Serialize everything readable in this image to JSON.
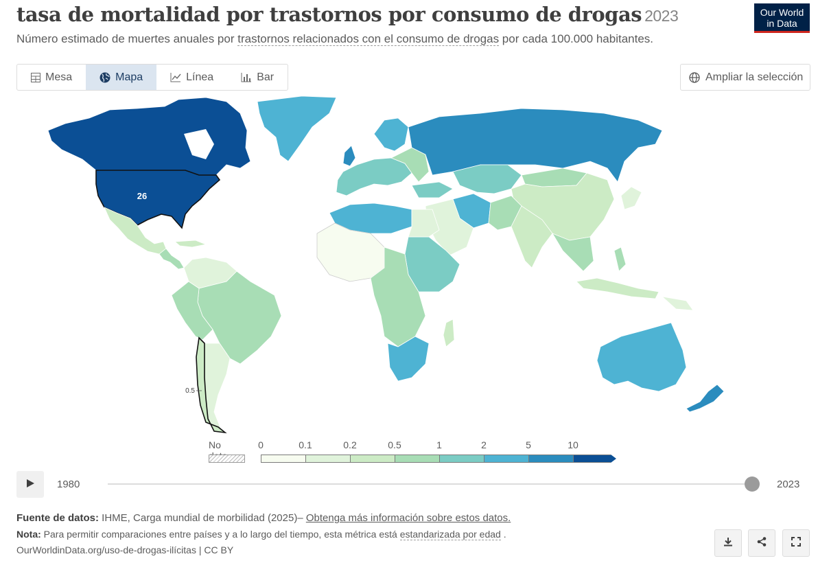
{
  "header": {
    "title": "tasa de mortalidad por trastornos por consumo de drogas",
    "year": "2023",
    "subtitle_pre": "Número estimado de muertes anuales por ",
    "subtitle_link": "trastornos relacionados con el consumo de drogas",
    "subtitle_post": " por cada 100.000 habitantes.",
    "logo_line1": "Our World",
    "logo_line2": "in Data"
  },
  "tabs": [
    {
      "label": "Mesa",
      "icon": "table-icon",
      "active": false
    },
    {
      "label": "Mapa",
      "icon": "globe-icon",
      "active": true
    },
    {
      "label": "Línea",
      "icon": "line-chart-icon",
      "active": false
    },
    {
      "label": "Bar",
      "icon": "bar-chart-icon",
      "active": false
    }
  ],
  "expand_button": {
    "label": "Ampliar la selección",
    "icon": "globe-outline-icon"
  },
  "map": {
    "labels": {
      "usa": "26",
      "chile": "0.5"
    },
    "selected_countries": [
      "United States",
      "Chile"
    ]
  },
  "legend": {
    "no_data_label": "No data",
    "ticks": [
      "0",
      "0.1",
      "0.2",
      "0.5",
      "1",
      "2",
      "5",
      "10"
    ],
    "colors": [
      "#f7fcf0",
      "#e0f3db",
      "#ccebc5",
      "#a8ddb5",
      "#7bccc4",
      "#4eb3d3",
      "#2b8cbe",
      "#0b4f95"
    ]
  },
  "timeline": {
    "start": "1980",
    "end": "2023",
    "current": "2023",
    "play_icon": "play-icon"
  },
  "footer": {
    "source_label": "Fuente de datos:",
    "source_text": " IHME, Carga mundial de morbilidad (2025)– ",
    "source_link": "Obtenga más información sobre estos datos.",
    "note_label": "Nota:",
    "note_text": " Para permitir comparaciones entre países y a lo largo del tiempo, esta métrica está ",
    "note_link": "estandarizada por edad",
    "note_end": " .",
    "url_text": "OurWorldinData.org/uso-de-drogas-ilícitas | CC BY"
  },
  "footer_buttons": [
    {
      "name": "download-icon"
    },
    {
      "name": "share-icon"
    },
    {
      "name": "fullscreen-icon"
    }
  ]
}
